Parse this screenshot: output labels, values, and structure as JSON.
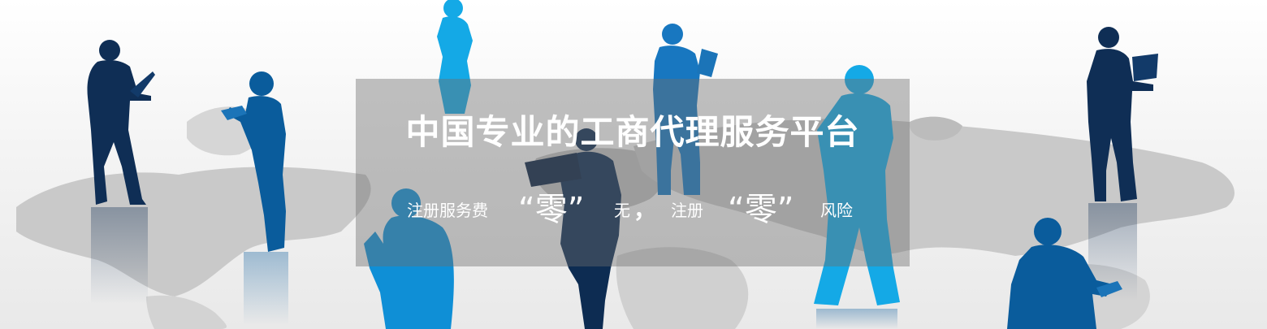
{
  "banner": {
    "headline": "中国专业的工商代理服务平台",
    "tagline": {
      "part1": "注册服务费",
      "zero1": "“零”",
      "part2": "无",
      "comma": "，",
      "part3": "注册",
      "zero2": "“零”",
      "part4": "风险"
    }
  },
  "colors": {
    "overlay": "#6e6e6e",
    "figure_dark": "#0f2e55",
    "figure_mid": "#0a5c9c",
    "figure_light": "#14a9e6",
    "map": "#c8c8c8"
  }
}
